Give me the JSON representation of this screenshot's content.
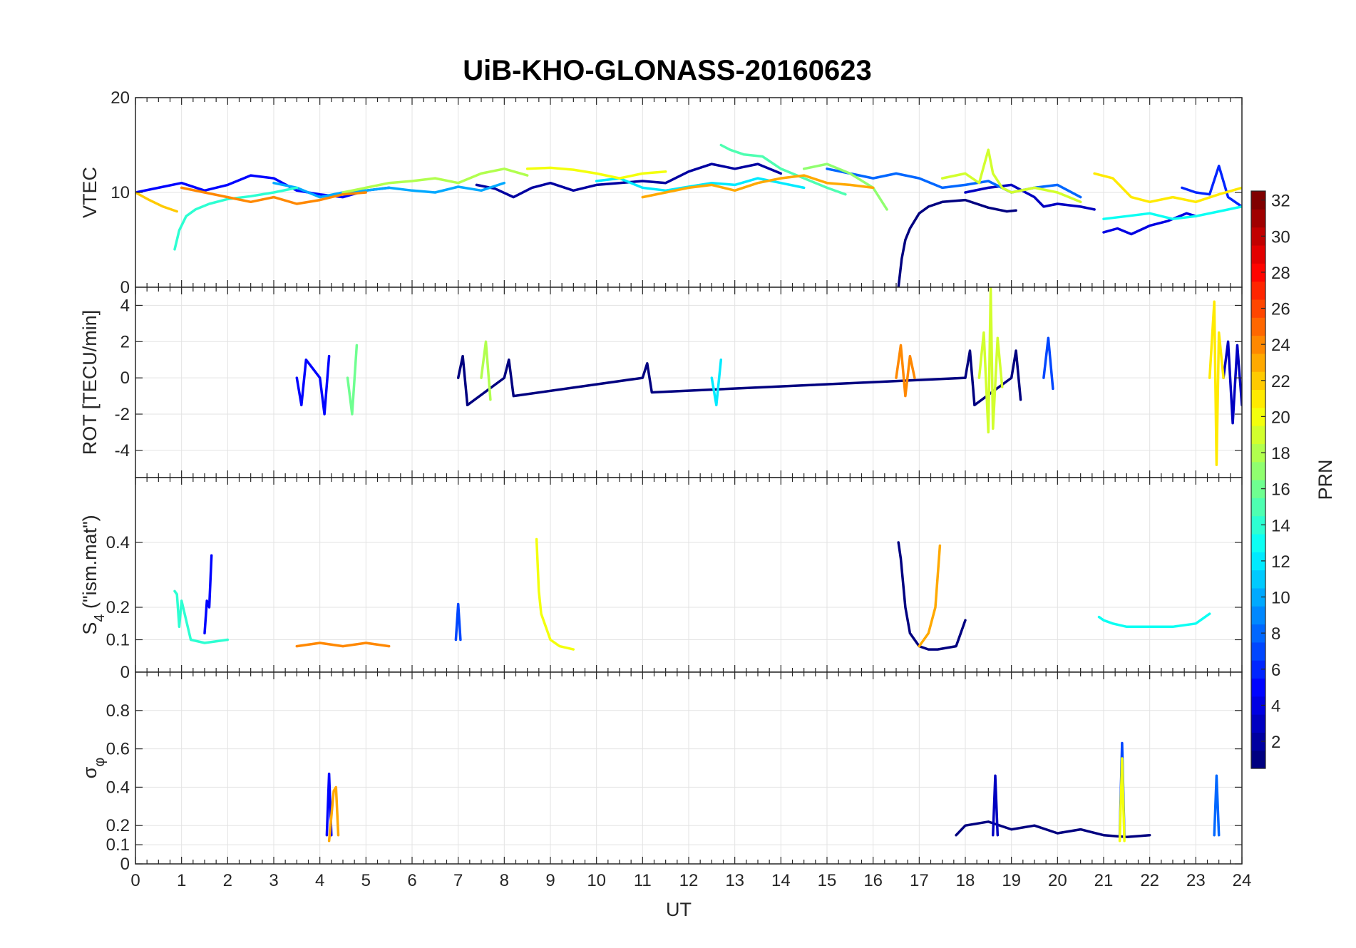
{
  "title": "UiB-KHO-GLONASS-20160623",
  "chart_data": {
    "type": "line",
    "title": "UiB-KHO-GLONASS-20160623",
    "xlabel": "UT",
    "xlim": [
      0,
      24
    ],
    "xticks": [
      "0",
      "1",
      "2",
      "3",
      "4",
      "5",
      "6",
      "7",
      "8",
      "9",
      "10",
      "11",
      "12",
      "13",
      "14",
      "15",
      "16",
      "17",
      "18",
      "19",
      "20",
      "21",
      "22",
      "23",
      "24"
    ],
    "grid": true,
    "colorbar": {
      "label": "PRN",
      "range": [
        1,
        32
      ],
      "ticks": [
        "2",
        "4",
        "6",
        "8",
        "10",
        "12",
        "14",
        "16",
        "18",
        "20",
        "22",
        "24",
        "26",
        "28",
        "30",
        "32"
      ],
      "colormap": "jet"
    },
    "panels": [
      {
        "ylabel": "VTEC",
        "ylim": [
          0,
          20
        ],
        "yticks": [
          "0",
          "10",
          "20"
        ],
        "series": [
          {
            "prn": 1,
            "x": [
              16.55,
              16.62,
              16.7,
              16.8,
              17.0,
              17.2,
              17.5,
              18.0,
              18.5,
              18.9,
              19.1
            ],
            "y": [
              0,
              3,
              5,
              6.2,
              7.8,
              8.5,
              9,
              9.2,
              8.4,
              8.0,
              8.1
            ]
          },
          {
            "prn": 2,
            "x": [
              7.4,
              7.8,
              8.2,
              8.6,
              9.0,
              9.5,
              10.0,
              10.5,
              11.0,
              11.5,
              12.0,
              12.5,
              13.0,
              13.5,
              14.0
            ],
            "y": [
              10.8,
              10.4,
              9.5,
              10.5,
              11.0,
              10.2,
              10.8,
              11.0,
              11.2,
              11.0,
              12.2,
              13.0,
              12.5,
              13.0,
              12.0
            ]
          },
          {
            "prn": 3,
            "x": [
              18.0,
              18.5,
              19.0,
              19.5,
              19.7,
              20.0,
              20.5,
              20.8
            ],
            "y": [
              10.0,
              10.5,
              10.8,
              9.5,
              8.5,
              8.8,
              8.5,
              8.2
            ]
          },
          {
            "prn": 4,
            "x": [
              21.0,
              21.3,
              21.6,
              22.0,
              22.4,
              22.8,
              23.0
            ],
            "y": [
              5.8,
              6.2,
              5.6,
              6.5,
              7.0,
              7.8,
              7.5
            ]
          },
          {
            "prn": 5,
            "x": [
              0,
              0.5,
              1.0,
              1.5,
              2.0,
              2.5,
              3.0,
              3.5,
              4.0,
              4.5,
              5.0,
              5.5
            ],
            "y": [
              10,
              10.5,
              11,
              10.2,
              10.8,
              11.8,
              11.5,
              10.2,
              9.8,
              9.5,
              10.2,
              10.5
            ]
          },
          {
            "prn": 6,
            "x": [
              22.7,
              23.0,
              23.3,
              23.5,
              23.7,
              24.0
            ],
            "y": [
              10.5,
              10.0,
              9.8,
              12.8,
              9.5,
              8.5
            ]
          },
          {
            "prn": 8,
            "x": [
              15.0,
              15.5,
              16.0,
              16.5,
              17.0,
              17.5,
              18.0,
              18.5,
              19.0,
              19.5,
              20.0,
              20.5
            ],
            "y": [
              12.5,
              12.0,
              11.5,
              12.0,
              11.5,
              10.5,
              10.8,
              11.2,
              10.0,
              10.5,
              10.8,
              9.5
            ]
          },
          {
            "prn": 10,
            "x": [
              3.0,
              3.5,
              4.0,
              4.5,
              5.0,
              5.5,
              6.0,
              6.5,
              7.0,
              7.5,
              8.0
            ],
            "y": [
              11.0,
              10.5,
              9.5,
              10.0,
              10.2,
              10.5,
              10.2,
              10.0,
              10.6,
              10.2,
              11.0
            ]
          },
          {
            "prn": 12,
            "x": [
              10.0,
              10.5,
              11.0,
              11.5,
              12.0,
              12.5,
              13.0,
              13.5,
              14.0,
              14.5
            ],
            "y": [
              11.2,
              11.5,
              10.5,
              10.2,
              10.6,
              11.0,
              10.8,
              11.5,
              11.0,
              10.5
            ]
          },
          {
            "prn": 13,
            "x": [
              21.0,
              21.5,
              22.0,
              22.5,
              23.0,
              23.5,
              24.0
            ],
            "y": [
              7.2,
              7.5,
              7.8,
              7.2,
              7.5,
              8.0,
              8.5
            ]
          },
          {
            "prn": 14,
            "x": [
              0.85,
              0.95,
              1.1,
              1.3,
              1.6,
              2.0,
              2.5,
              3.0,
              3.5
            ],
            "y": [
              4,
              6,
              7.5,
              8.2,
              8.8,
              9.3,
              9.6,
              10.0,
              10.5
            ]
          },
          {
            "prn": 15,
            "x": [
              12.7,
              12.9,
              13.2,
              13.6,
              14.0,
              14.5,
              15.0,
              15.4
            ],
            "y": [
              15.0,
              14.5,
              14.0,
              13.8,
              12.5,
              11.5,
              10.5,
              9.8
            ]
          },
          {
            "prn": 17,
            "x": [
              14.5,
              15.0,
              15.5,
              16.0,
              16.3
            ],
            "y": [
              12.5,
              13.0,
              12.0,
              10.5,
              8.2
            ]
          },
          {
            "prn": 18,
            "x": [
              4.5,
              5.0,
              5.5,
              6.0,
              6.5,
              7.0,
              7.5,
              8.0,
              8.5
            ],
            "y": [
              10.0,
              10.5,
              11.0,
              11.2,
              11.5,
              11.0,
              12.0,
              12.5,
              11.8
            ]
          },
          {
            "prn": 19,
            "x": [
              17.5,
              18.0,
              18.3,
              18.5,
              18.6,
              18.8,
              19.0,
              19.5,
              20.0,
              20.5
            ],
            "y": [
              11.5,
              12.0,
              11.0,
              14.5,
              12.0,
              10.5,
              10.0,
              10.5,
              10.0,
              9.0
            ]
          },
          {
            "prn": 20,
            "x": [
              8.5,
              9.0,
              9.5,
              10.0,
              10.5,
              11.0,
              11.5
            ],
            "y": [
              12.5,
              12.6,
              12.4,
              12.0,
              11.5,
              12.0,
              12.2
            ]
          },
          {
            "prn": 21,
            "x": [
              20.8,
              21.2,
              21.6,
              22.0,
              22.5,
              23.0,
              23.5,
              24.0
            ],
            "y": [
              12.0,
              11.5,
              9.5,
              9.0,
              9.5,
              9.0,
              9.8,
              10.5
            ]
          },
          {
            "prn": 22,
            "x": [
              0,
              0.3,
              0.6,
              0.9
            ],
            "y": [
              10.0,
              9.2,
              8.5,
              8.0
            ]
          },
          {
            "prn": 23,
            "x": [
              11.0,
              11.5,
              12.0,
              12.5,
              13.0,
              13.5,
              14.0,
              14.5,
              15.0,
              15.5,
              16.0
            ],
            "y": [
              9.5,
              10.0,
              10.5,
              10.8,
              10.2,
              11.0,
              11.5,
              11.8,
              11.0,
              10.8,
              10.5
            ]
          },
          {
            "prn": 24,
            "x": [
              1.0,
              1.5,
              2.0,
              2.5,
              3.0,
              3.5,
              4.0,
              4.5,
              5.0
            ],
            "y": [
              10.5,
              10.0,
              9.5,
              9.0,
              9.5,
              8.8,
              9.2,
              9.8,
              10.0
            ]
          }
        ]
      },
      {
        "ylabel": "ROT [TECU/min]",
        "ylim": [
          -5.5,
          5.0
        ],
        "yticks": [
          "-4",
          "-2",
          "0",
          "2",
          "4"
        ],
        "series": [
          {
            "prn": 1,
            "x": [
              7.0,
              7.1,
              7.2,
              8.0,
              8.1,
              8.2,
              11.0,
              11.1,
              11.2,
              18.0,
              18.1,
              18.2,
              19.0,
              19.1,
              19.2
            ],
            "y": [
              0,
              1.2,
              -1.5,
              0,
              1.0,
              -1.0,
              0,
              0.8,
              -0.8,
              0,
              1.5,
              -1.5,
              0,
              1.5,
              -1.2
            ]
          },
          {
            "prn": 3,
            "x": [
              23.6,
              23.7,
              23.8,
              23.9,
              24.0
            ],
            "y": [
              0,
              2.0,
              -2.5,
              1.8,
              -1.5
            ]
          },
          {
            "prn": 5,
            "x": [
              3.5,
              3.6,
              3.7,
              4.0,
              4.1,
              4.2
            ],
            "y": [
              0,
              -1.5,
              1.0,
              0,
              -2.0,
              1.2
            ]
          },
          {
            "prn": 7,
            "x": [
              19.7,
              19.8,
              19.9
            ],
            "y": [
              0,
              2.2,
              -0.6
            ]
          },
          {
            "prn": 12,
            "x": [
              12.5,
              12.6,
              12.7
            ],
            "y": [
              0,
              -1.5,
              1.0
            ]
          },
          {
            "prn": 16,
            "x": [
              4.6,
              4.7,
              4.8
            ],
            "y": [
              0,
              -2.0,
              1.8
            ]
          },
          {
            "prn": 18,
            "x": [
              7.5,
              7.6,
              7.7
            ],
            "y": [
              0,
              2.0,
              -1.2
            ]
          },
          {
            "prn": 19,
            "x": [
              18.3,
              18.4,
              18.5,
              18.55,
              18.6,
              18.7,
              18.8
            ],
            "y": [
              0,
              2.5,
              -3.0,
              5.0,
              -2.8,
              2.2,
              -0.5
            ]
          },
          {
            "prn": 21,
            "x": [
              23.3,
              23.4,
              23.45,
              23.5,
              23.6
            ],
            "y": [
              0,
              4.2,
              -4.8,
              2.5,
              0
            ]
          },
          {
            "prn": 24,
            "x": [
              16.5,
              16.6,
              16.7,
              16.8,
              16.9
            ],
            "y": [
              0,
              1.8,
              -1.0,
              1.2,
              0
            ]
          }
        ]
      },
      {
        "ylabel": "S4 (\"ism.mat\")",
        "ylabel_main": "S",
        "ylabel_sub": "4",
        "ylabel_rest": " (\"ism.mat\")",
        "ylim": [
          0,
          0.6
        ],
        "yticks": [
          "0",
          "0.1",
          "0.2",
          "0.4"
        ],
        "series": [
          {
            "prn": 1,
            "x": [
              16.55,
              16.6,
              16.7,
              16.8,
              17.0,
              17.2,
              17.4,
              17.8,
              18.0
            ],
            "y": [
              0.4,
              0.35,
              0.2,
              0.12,
              0.08,
              0.07,
              0.07,
              0.08,
              0.16
            ]
          },
          {
            "prn": 5,
            "x": [
              1.5,
              1.55,
              1.6,
              1.65
            ],
            "y": [
              0.12,
              0.22,
              0.2,
              0.36
            ]
          },
          {
            "prn": 7,
            "x": [
              6.95,
              7.0,
              7.05
            ],
            "y": [
              0.1,
              0.21,
              0.1
            ]
          },
          {
            "prn": 13,
            "x": [
              20.9,
              21.0,
              21.2,
              21.5,
              22.0,
              22.5,
              23.0,
              23.3
            ],
            "y": [
              0.17,
              0.16,
              0.15,
              0.14,
              0.14,
              0.14,
              0.15,
              0.18
            ]
          },
          {
            "prn": 14,
            "x": [
              0.85,
              0.9,
              0.95,
              1.0,
              1.2,
              1.5,
              2.0
            ],
            "y": [
              0.25,
              0.24,
              0.14,
              0.22,
              0.1,
              0.09,
              0.1
            ]
          },
          {
            "prn": 20,
            "x": [
              8.7,
              8.75,
              8.8,
              9.0,
              9.2,
              9.5
            ],
            "y": [
              0.41,
              0.25,
              0.18,
              0.1,
              0.08,
              0.07
            ]
          },
          {
            "prn": 23,
            "x": [
              17.0,
              17.2,
              17.35,
              17.45
            ],
            "y": [
              0.08,
              0.12,
              0.2,
              0.39
            ]
          },
          {
            "prn": 24,
            "x": [
              3.5,
              4.0,
              4.5,
              5.0,
              5.5
            ],
            "y": [
              0.08,
              0.09,
              0.08,
              0.09,
              0.08
            ]
          }
        ]
      },
      {
        "ylabel": "σφ",
        "ylabel_main": "σ",
        "ylabel_sub": "φ",
        "ylim": [
          0,
          1.0
        ],
        "yticks": [
          "0",
          "0.1",
          "0.2",
          "0.4",
          "0.6",
          "0.8"
        ],
        "series": [
          {
            "prn": 1,
            "x": [
              17.8,
              18.0,
              18.5,
              19.0,
              19.5,
              20.0,
              20.5,
              21.0,
              21.5,
              22.0
            ],
            "y": [
              0.15,
              0.2,
              0.22,
              0.18,
              0.2,
              0.16,
              0.18,
              0.15,
              0.14,
              0.15
            ]
          },
          {
            "prn": 3,
            "x": [
              18.6,
              18.65,
              18.7
            ],
            "y": [
              0.15,
              0.46,
              0.15
            ]
          },
          {
            "prn": 5,
            "x": [
              4.15,
              4.2,
              4.25
            ],
            "y": [
              0.15,
              0.47,
              0.15
            ]
          },
          {
            "prn": 7,
            "x": [
              21.35,
              21.4,
              21.45
            ],
            "y": [
              0.15,
              0.63,
              0.15
            ]
          },
          {
            "prn": 8,
            "x": [
              23.4,
              23.45,
              23.5
            ],
            "y": [
              0.15,
              0.46,
              0.15
            ]
          },
          {
            "prn": 20,
            "x": [
              21.35,
              21.4,
              21.45
            ],
            "y": [
              0.12,
              0.55,
              0.12
            ]
          },
          {
            "prn": 23,
            "x": [
              4.2,
              4.3,
              4.35,
              4.4
            ],
            "y": [
              0.12,
              0.38,
              0.4,
              0.15
            ]
          }
        ]
      }
    ]
  }
}
